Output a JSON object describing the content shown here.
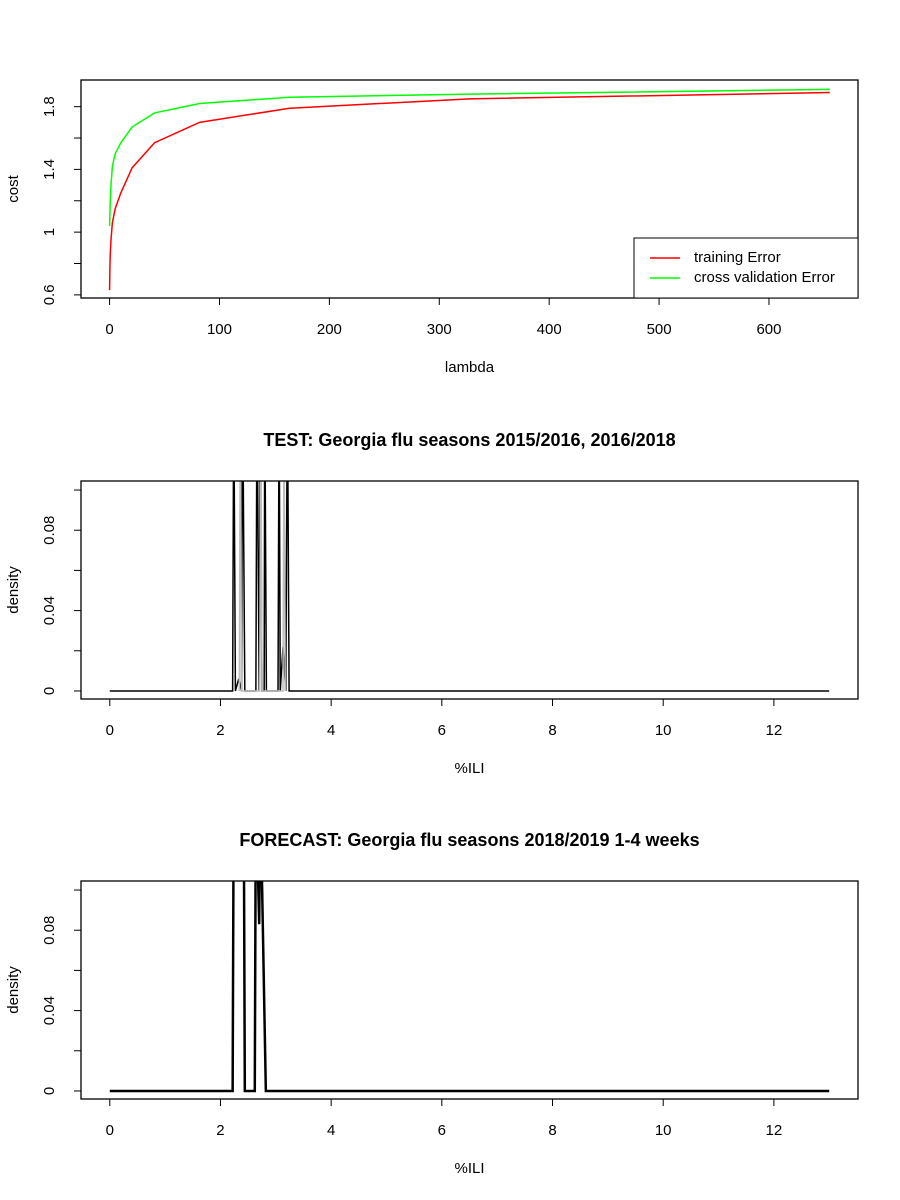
{
  "chart_data": [
    {
      "type": "line",
      "x_label": "lambda",
      "y_label": "cost",
      "xlim": [
        -26,
        681
      ],
      "ylim": [
        0.58,
        1.97
      ],
      "xticks": [
        0,
        100,
        200,
        300,
        400,
        500,
        600
      ],
      "yticks": [
        0.6,
        1.0,
        1.4,
        1.8
      ],
      "yminor_ticks": [
        0.8,
        1.2,
        1.6
      ],
      "legend": "bottomright",
      "series": [
        {
          "name": "training Error",
          "color": "#ff0000",
          "x": [
            0,
            0.32,
            0.64,
            1.28,
            2.56,
            5.12,
            10.24,
            20.48,
            40.96,
            81.92,
            163.84,
            327.68,
            655.36
          ],
          "values": [
            0.63,
            0.78,
            0.86,
            0.95,
            1.06,
            1.15,
            1.25,
            1.41,
            1.57,
            1.7,
            1.79,
            1.85,
            1.89
          ]
        },
        {
          "name": "cross validation Error",
          "color": "#00ff00",
          "x": [
            0,
            0.32,
            0.64,
            1.28,
            2.56,
            5.12,
            10.24,
            20.48,
            40.96,
            81.92,
            163.84,
            327.68,
            655.36
          ],
          "values": [
            1.04,
            1.12,
            1.2,
            1.3,
            1.42,
            1.5,
            1.57,
            1.67,
            1.76,
            1.82,
            1.86,
            1.88,
            1.91
          ]
        }
      ]
    },
    {
      "type": "line",
      "title": "TEST: Georgia  flu seasons 2015/2016, 2016/2018",
      "x_label": "%ILI",
      "y_label": "density",
      "xlim": [
        -0.52,
        13.52
      ],
      "ylim": [
        -0.004,
        0.1045
      ],
      "xticks": [
        0,
        2,
        4,
        6,
        8,
        10,
        12
      ],
      "yticks": [
        0.0,
        0.04,
        0.08
      ],
      "yminor_ticks": [
        0.02,
        0.06,
        0.1
      ],
      "series": [
        {
          "color": "#000000",
          "line_width": 1.5,
          "x": [
            0,
            2.22,
            2.24,
            2.27,
            2.33,
            2.38,
            2.4,
            2.44,
            2.64,
            2.66,
            2.7,
            2.72,
            2.75,
            2.79,
            2.8,
            2.83,
            3.04,
            3.06,
            3.08,
            3.13,
            3.18,
            3.21,
            3.24,
            13
          ],
          "values": [
            0,
            0,
            0.15,
            0,
            0.006,
            0,
            0.15,
            0,
            0,
            0.15,
            0,
            0.15,
            0,
            0,
            0.15,
            0,
            0,
            0.15,
            0,
            0.022,
            0,
            0.15,
            0,
            0
          ]
        },
        {
          "color": "#bebebe",
          "line_width": 1.5,
          "x": [
            2.34,
            2.36,
            2.38,
            2.71,
            2.73,
            2.75,
            3.13,
            3.15,
            3.17
          ],
          "values": [
            0,
            0.15,
            0,
            0,
            0.15,
            0,
            0,
            0.15,
            0
          ]
        }
      ]
    },
    {
      "type": "line",
      "title": "FORECAST: Georgia flu seasons 2018/2019 1-4 weeks",
      "x_label": "%ILI",
      "y_label": "density",
      "xlim": [
        -0.52,
        13.52
      ],
      "ylim": [
        -0.004,
        0.1045
      ],
      "xticks": [
        0,
        2,
        4,
        6,
        8,
        10,
        12
      ],
      "yticks": [
        0.0,
        0.04,
        0.08
      ],
      "yminor_ticks": [
        0.02,
        0.06,
        0.1
      ],
      "series": [
        {
          "color": "#000000",
          "line_width": 2.5,
          "x": [
            0,
            2.22,
            2.24,
            2.42,
            2.44,
            2.62,
            2.64,
            2.7,
            2.72,
            2.82,
            13
          ],
          "values": [
            0,
            0,
            0.15,
            0.15,
            0,
            0,
            0.15,
            0.083,
            0.15,
            0,
            0
          ]
        }
      ]
    }
  ]
}
